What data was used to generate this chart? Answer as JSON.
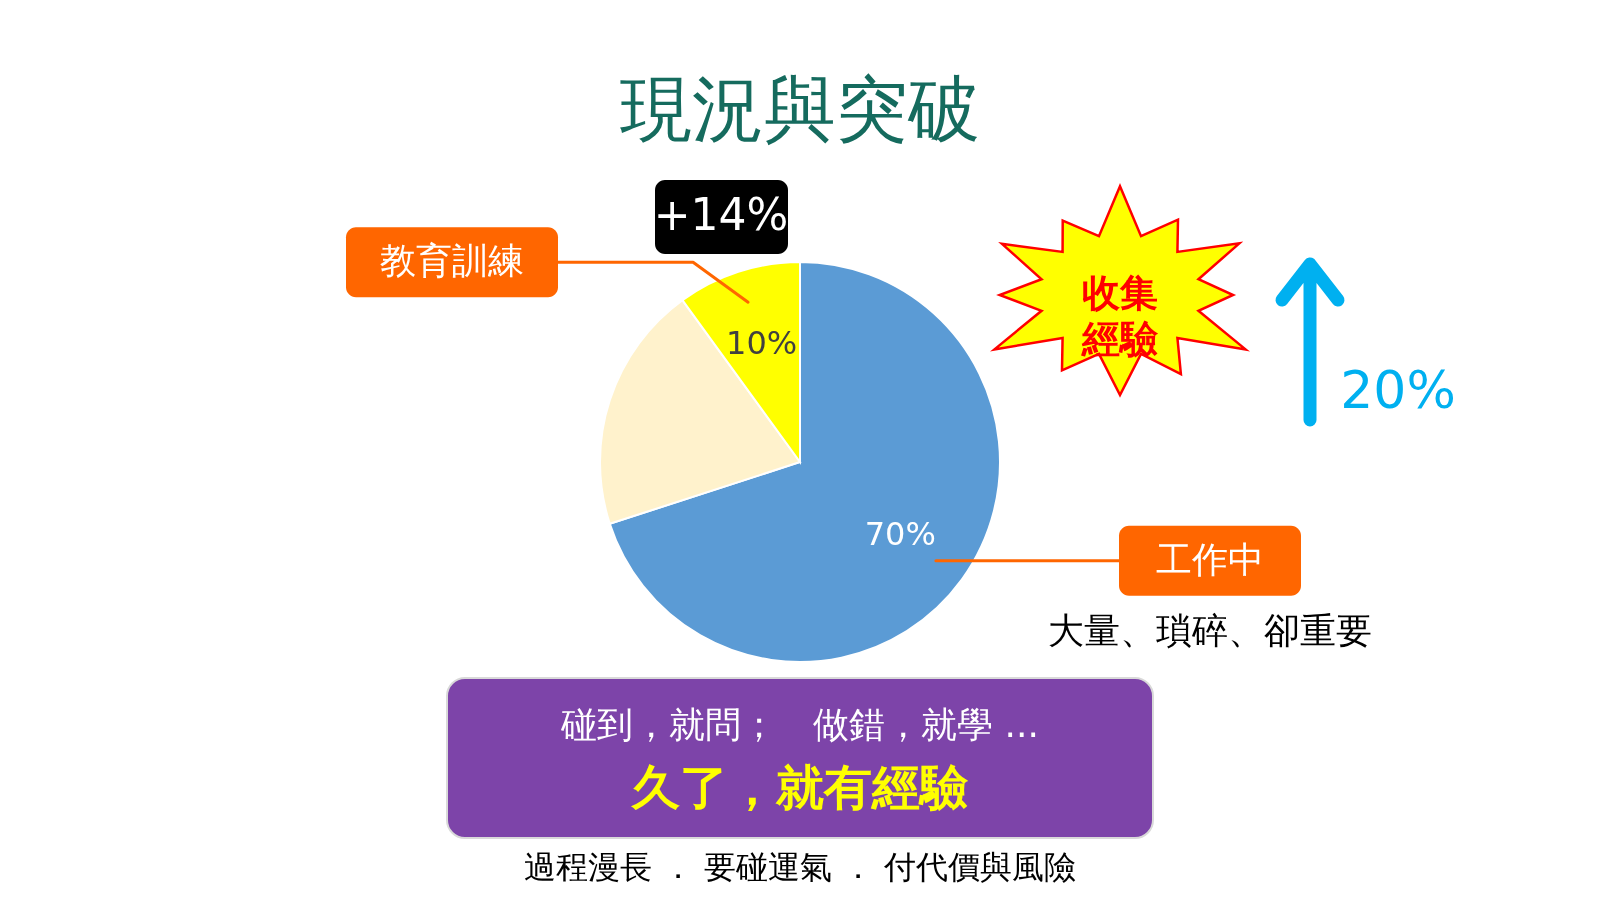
{
  "chart_data": {
    "type": "pie",
    "title": "現況與突破",
    "categories": [
      "工作中",
      null,
      "教育訓練"
    ],
    "values": [
      70,
      20,
      10
    ],
    "colors": [
      "#5b9bd5",
      "#fff2cc",
      "#ffff00"
    ],
    "value_labels": [
      "70%",
      null,
      "10%"
    ],
    "annotations": [
      "+14%",
      "收集經驗",
      "20%",
      "大量、瑣碎、卻重要",
      "碰到，就問；　做錯，就學 ...",
      "久了，就有經驗",
      "過程漫長 ． 要碰運氣 ． 付代價與風險"
    ]
  }
}
